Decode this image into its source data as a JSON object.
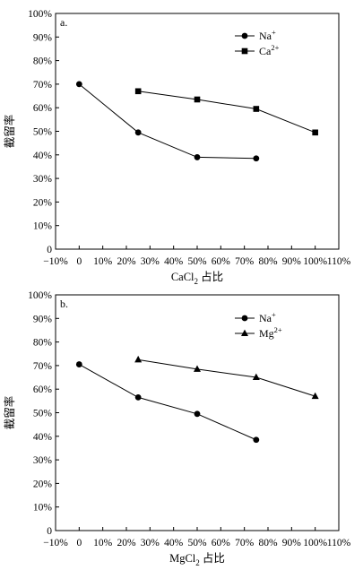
{
  "chart_data": [
    {
      "type": "line",
      "panel_label": "a.",
      "xlabel": "CaCl",
      "xlabel_sub": "2",
      "xlabel_suffix": " 占比",
      "ylabel": "截留率",
      "xlim": [
        -10,
        110
      ],
      "ylim": [
        0,
        100
      ],
      "x_ticks": [
        "−10%",
        "0",
        "10%",
        "20%",
        "30%",
        "40%",
        "50%",
        "60%",
        "70%",
        "80%",
        "90%",
        "100%",
        "110%"
      ],
      "y_ticks": [
        "0",
        "10%",
        "20%",
        "30%",
        "40%",
        "50%",
        "60%",
        "70%",
        "80%",
        "90%",
        "100%"
      ],
      "legend_position": "top-right",
      "series": [
        {
          "name": "Na",
          "name_sup": "+",
          "marker": "circle",
          "x": [
            0,
            25,
            50,
            75
          ],
          "y": [
            70,
            49.5,
            39,
            38.5
          ]
        },
        {
          "name": "Ca",
          "name_sup": "2+",
          "marker": "square",
          "x": [
            25,
            50,
            75,
            100
          ],
          "y": [
            67,
            63.5,
            59.5,
            49.5
          ]
        }
      ]
    },
    {
      "type": "line",
      "panel_label": "b.",
      "xlabel": "MgCl",
      "xlabel_sub": "2",
      "xlabel_suffix": " 占比",
      "ylabel": "截留率",
      "xlim": [
        -10,
        110
      ],
      "ylim": [
        0,
        100
      ],
      "x_ticks": [
        "−10%",
        "0",
        "10%",
        "20%",
        "30%",
        "40%",
        "50%",
        "60%",
        "70%",
        "80%",
        "90%",
        "100%",
        "110%"
      ],
      "y_ticks": [
        "0",
        "10%",
        "20%",
        "30%",
        "40%",
        "50%",
        "60%",
        "70%",
        "80%",
        "90%",
        "100%"
      ],
      "legend_position": "top-right",
      "series": [
        {
          "name": "Na",
          "name_sup": "+",
          "marker": "circle",
          "x": [
            0,
            25,
            50,
            75
          ],
          "y": [
            70.5,
            56.5,
            49.5,
            38.5
          ]
        },
        {
          "name": "Mg",
          "name_sup": "2+",
          "marker": "triangle",
          "x": [
            25,
            50,
            75,
            100
          ],
          "y": [
            72.5,
            68.5,
            65,
            57
          ]
        }
      ]
    }
  ]
}
